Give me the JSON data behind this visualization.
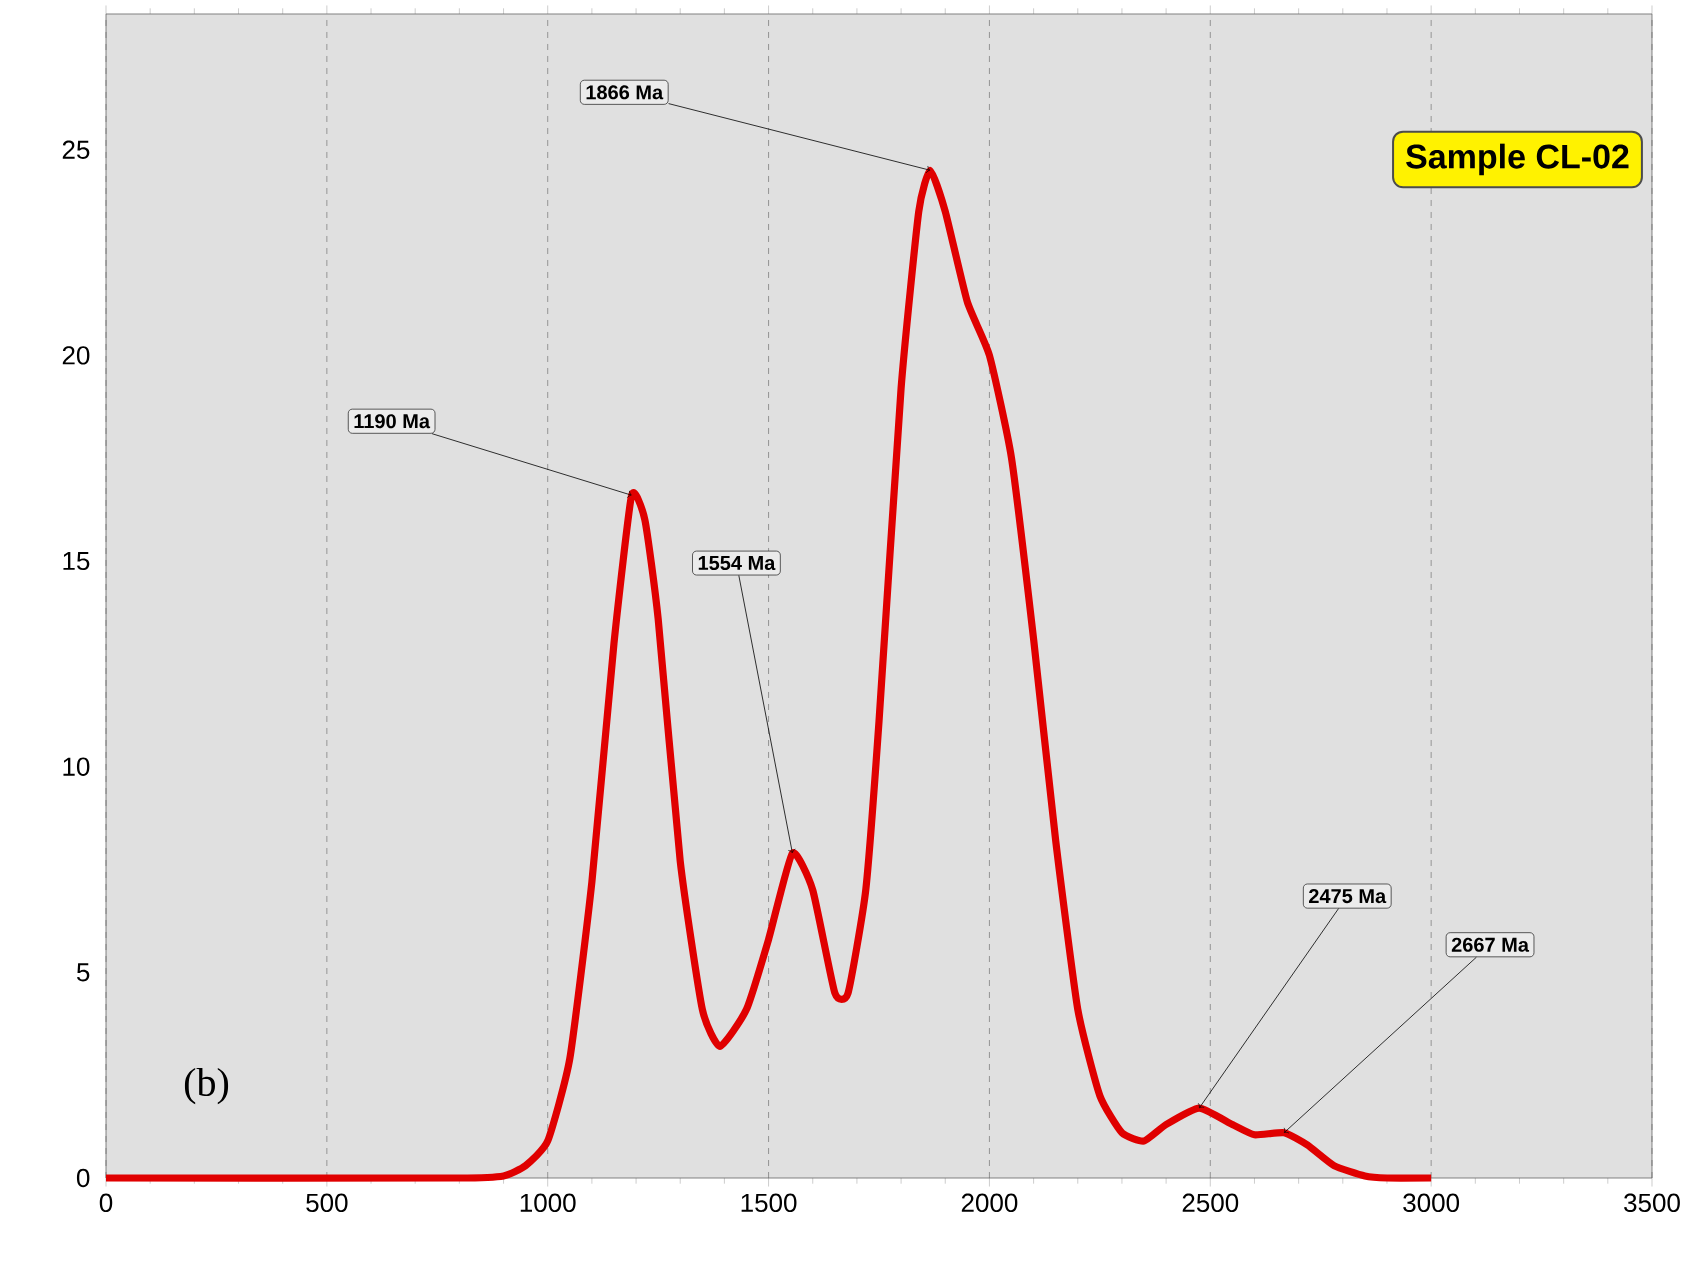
{
  "chart_data": {
    "type": "line",
    "xlim": [
      0,
      3500
    ],
    "ylim": [
      0,
      28.3
    ],
    "xticks": [
      0,
      500,
      1000,
      1500,
      2000,
      2500,
      3000,
      3500
    ],
    "yticks": [
      0,
      5,
      10,
      15,
      20,
      25
    ],
    "grid": "x",
    "marker": "none",
    "line_style": "solid",
    "series": [
      {
        "color": "#e00000",
        "x": [
          0,
          800,
          900,
          950,
          1000,
          1050,
          1100,
          1150,
          1190,
          1220,
          1250,
          1300,
          1350,
          1390,
          1450,
          1500,
          1554,
          1600,
          1650,
          1680,
          1720,
          1750,
          1800,
          1840,
          1866,
          1900,
          1950,
          2000,
          2050,
          2100,
          2150,
          2200,
          2250,
          2300,
          2350,
          2400,
          2475,
          2550,
          2600,
          2667,
          2720,
          2780,
          2850,
          2900,
          3000
        ],
        "values": [
          0,
          0,
          0.05,
          0.3,
          0.9,
          2.9,
          7.2,
          13,
          16.6,
          16,
          13.6,
          7.7,
          4.1,
          3.2,
          4.1,
          5.8,
          7.9,
          7,
          4.5,
          4.5,
          7,
          11.1,
          19.2,
          23.5,
          24.5,
          23.5,
          21.3,
          20,
          17.5,
          13.1,
          8.2,
          4.1,
          2,
          1.1,
          0.9,
          1.3,
          1.7,
          1.3,
          1.05,
          1.1,
          0.8,
          0.3,
          0.05,
          0,
          0
        ]
      }
    ],
    "annotations": [
      {
        "text": "1190 Ma",
        "x": 1190,
        "y": 16.6
      },
      {
        "text": "1554 Ma",
        "x": 1554,
        "y": 7.9
      },
      {
        "text": "1866 Ma",
        "x": 1866,
        "y": 24.5
      },
      {
        "text": "2475 Ma",
        "x": 2475,
        "y": 1.7
      },
      {
        "text": "2667 Ma",
        "x": 2667,
        "y": 1.1
      },
      "Sample CL-02",
      "(b)"
    ]
  }
}
